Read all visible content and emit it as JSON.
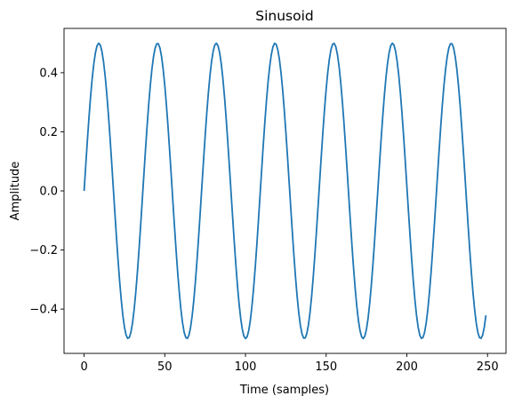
{
  "chart_data": {
    "type": "line",
    "title": "Sinusoid",
    "xlabel": "Time (samples)",
    "ylabel": "Amplitude",
    "xlim": [
      -12.45,
      261.45
    ],
    "ylim": [
      -0.55,
      0.55
    ],
    "xticks": [
      0,
      50,
      100,
      150,
      200,
      250
    ],
    "yticks": [
      -0.4,
      -0.2,
      0.0,
      0.2,
      0.4
    ],
    "ytick_labels": [
      "−0.4",
      "−0.2",
      "0.0",
      "0.2",
      "0.4"
    ],
    "grid": false,
    "series": [
      {
        "color": "#1f77b4",
        "function": "amplitude * sin(2*pi*x/period)",
        "amplitude": 0.5,
        "period": 36.4,
        "x_start": 0,
        "x_end": 249,
        "x_step": 1
      }
    ]
  }
}
